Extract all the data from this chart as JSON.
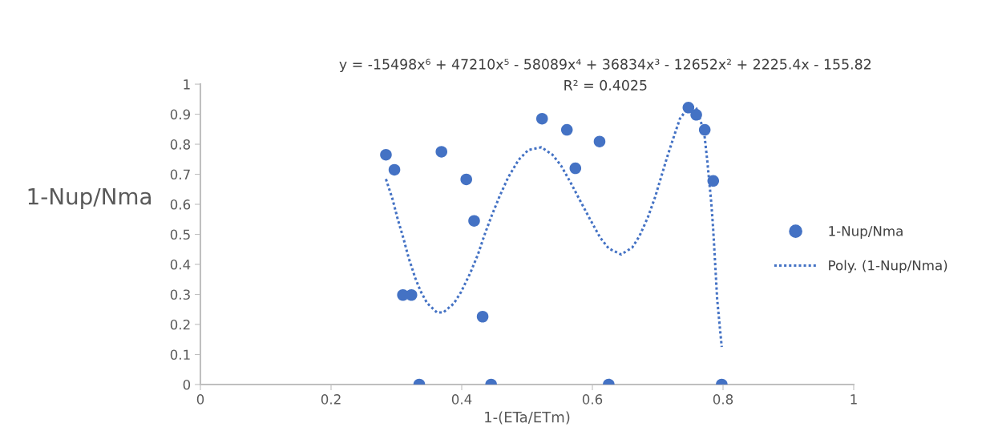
{
  "chart_data": {
    "type": "scatter",
    "xlabel": "1-(ETa/ETm)",
    "ylabel": "1-Nup/Nma",
    "annotations": [
      "y = -15498x⁶ + 47210x⁵ - 58089x⁴ + 36834x³ - 12652x² + 2225.4x - 155.82",
      "R² = 0.4025"
    ],
    "xlim": [
      0,
      1
    ],
    "xticks": [
      0,
      0.2,
      0.4,
      0.6,
      0.8,
      1
    ],
    "ylim": [
      0,
      1
    ],
    "yticks": [
      0,
      0.1,
      0.2,
      0.3,
      0.4,
      0.5,
      0.6,
      0.7,
      0.8,
      0.9,
      1
    ],
    "grid": false,
    "legend": "right",
    "series": [
      {
        "name": "1-Nup/Nma",
        "marker": "circle",
        "color": "#4472c4",
        "x": [
          0.284,
          0.297,
          0.31,
          0.323,
          0.335,
          0.369,
          0.407,
          0.419,
          0.432,
          0.445,
          0.523,
          0.561,
          0.574,
          0.611,
          0.625,
          0.747,
          0.759,
          0.772,
          0.785,
          0.798
        ],
        "values": [
          0.765,
          0.715,
          0.298,
          0.298,
          0,
          0.775,
          0.683,
          0.545,
          0.226,
          0,
          0.885,
          0.848,
          0.72,
          0.809,
          0,
          0.922,
          0.898,
          0.848,
          0.678,
          0
        ]
      },
      {
        "name": "Poly. (1-Nup/Nma)",
        "type": "line",
        "marker": "none",
        "line_style": "dotted",
        "color": "#4472c4",
        "x": [
          0.284,
          0.294,
          0.302,
          0.311,
          0.319,
          0.329,
          0.337,
          0.347,
          0.362,
          0.372,
          0.388,
          0.399,
          0.413,
          0.425,
          0.435,
          0.446,
          0.458,
          0.471,
          0.487,
          0.502,
          0.522,
          0.539,
          0.552,
          0.567,
          0.582,
          0.597,
          0.612,
          0.625,
          0.644,
          0.661,
          0.672,
          0.685,
          0.696,
          0.705,
          0.714,
          0.724,
          0.734,
          0.749,
          0.759,
          0.771,
          0.776,
          0.782,
          0.785,
          0.788,
          0.791,
          0.795,
          0.798
        ],
        "values": [
          0.684,
          0.618,
          0.551,
          0.485,
          0.42,
          0.354,
          0.311,
          0.271,
          0.24,
          0.24,
          0.27,
          0.308,
          0.371,
          0.434,
          0.499,
          0.563,
          0.627,
          0.689,
          0.748,
          0.781,
          0.79,
          0.765,
          0.729,
          0.671,
          0.609,
          0.548,
          0.489,
          0.453,
          0.433,
          0.456,
          0.494,
          0.557,
          0.624,
          0.689,
          0.754,
          0.821,
          0.885,
          0.929,
          0.92,
          0.842,
          0.742,
          0.605,
          0.514,
          0.4,
          0.285,
          0.192,
          0.125
        ]
      }
    ]
  }
}
